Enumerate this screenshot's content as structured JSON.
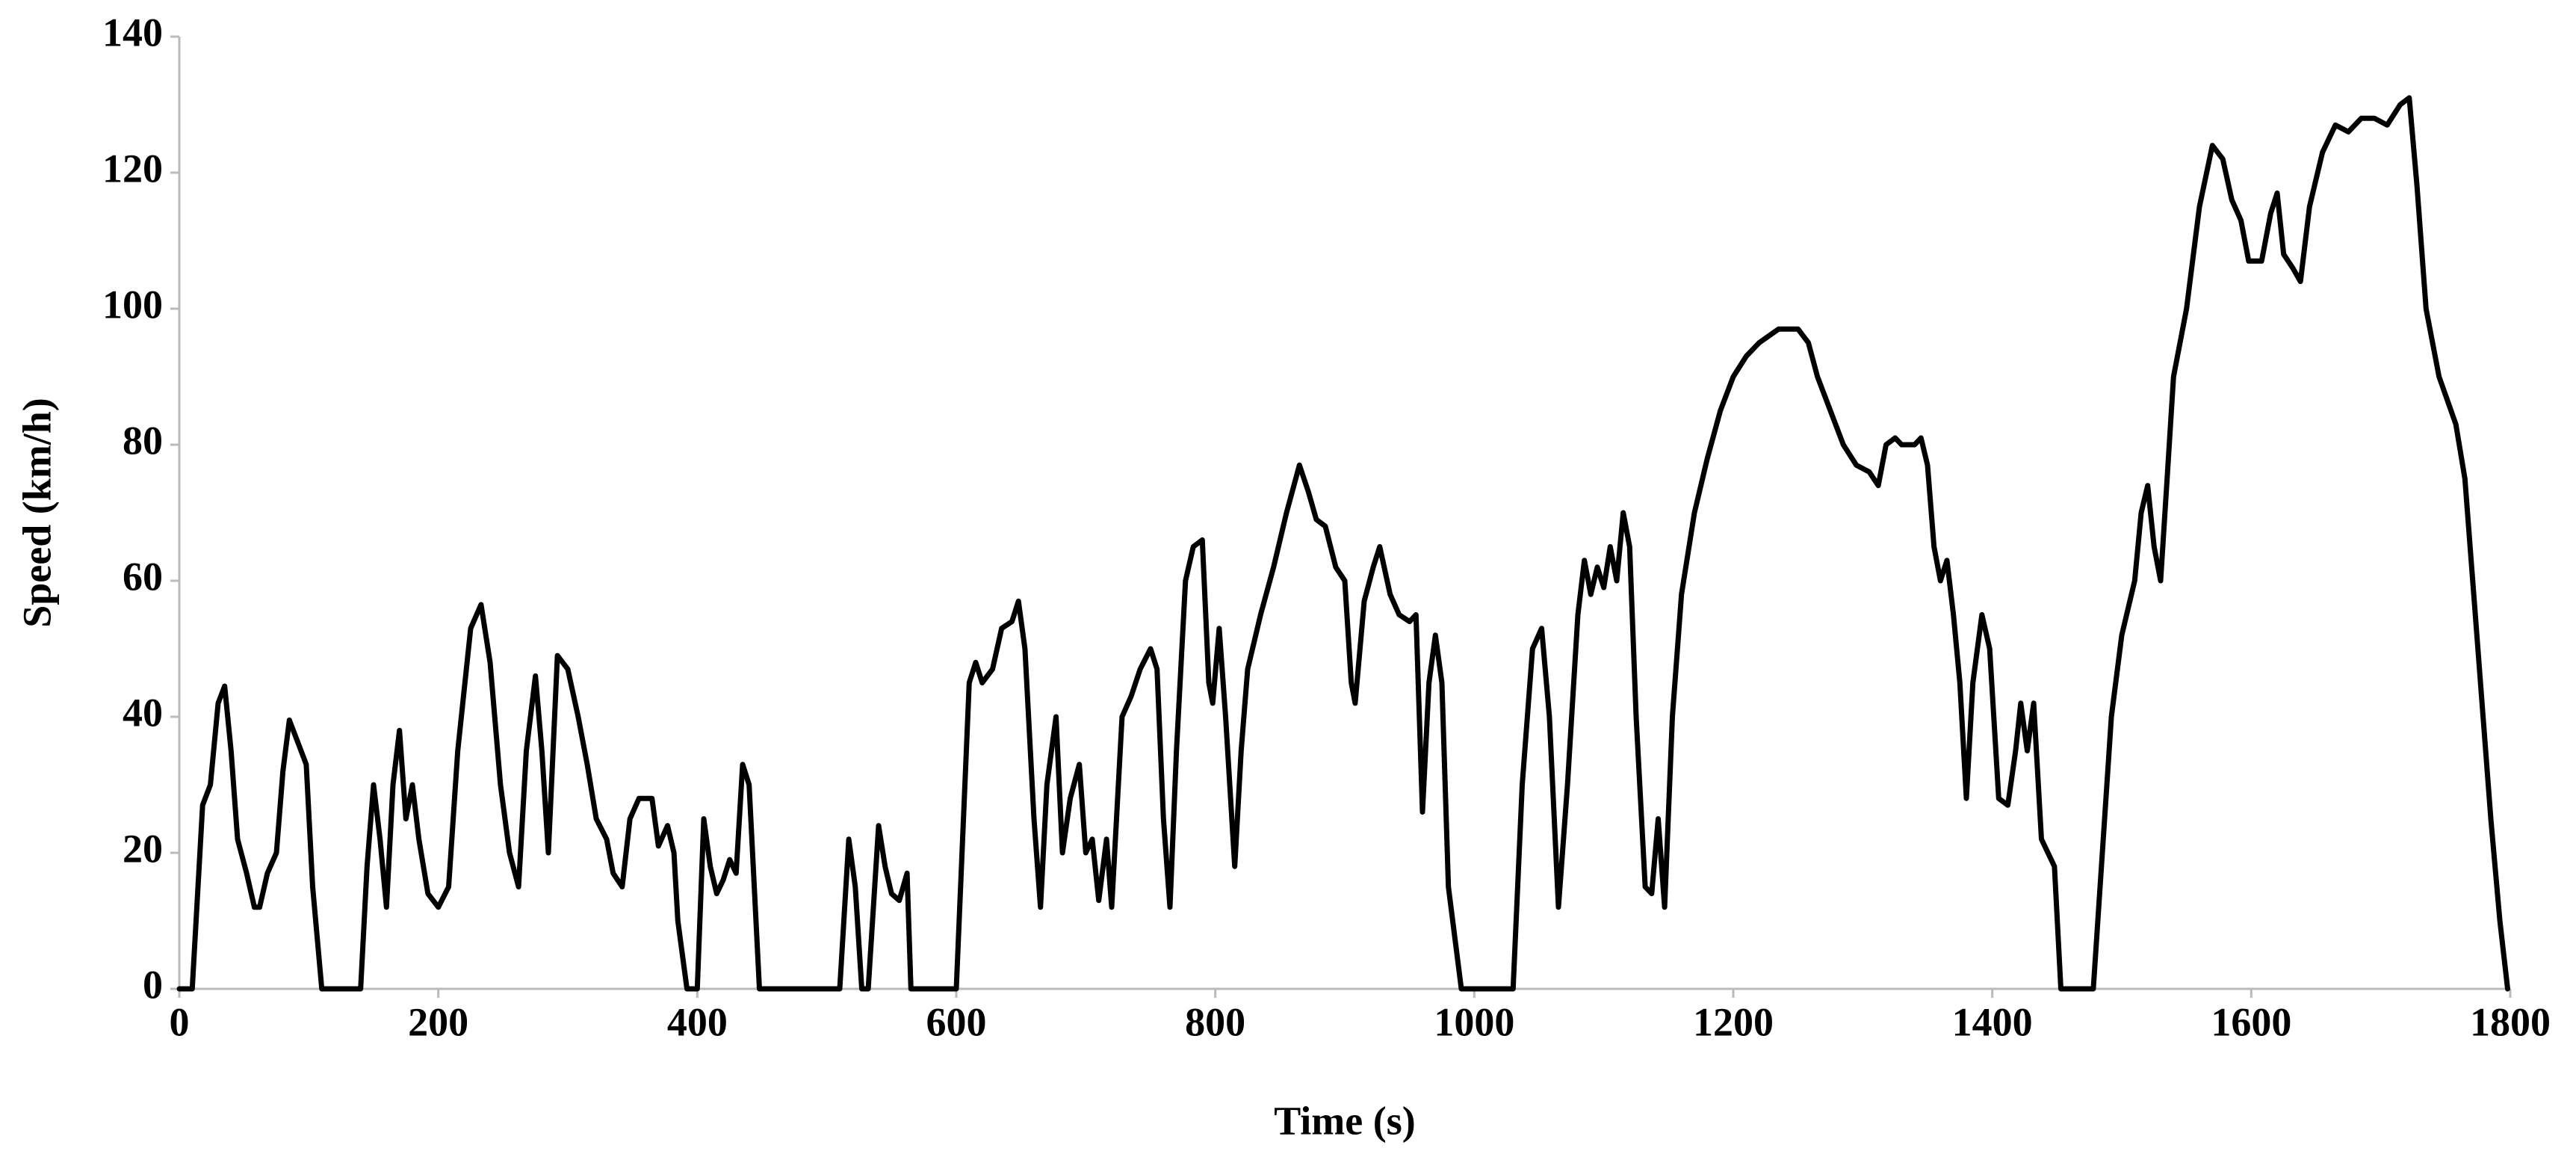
{
  "chart_data": {
    "type": "line",
    "xlabel": "Time (s)",
    "ylabel": "Speed (km/h)",
    "color": "#000000",
    "x": [
      0,
      10,
      18,
      24,
      30,
      35,
      40,
      45,
      52,
      58,
      62,
      68,
      75,
      80,
      85,
      92,
      98,
      103,
      110,
      140,
      145,
      150,
      155,
      160,
      165,
      170,
      175,
      180,
      185,
      192,
      200,
      208,
      215,
      225,
      233,
      240,
      248,
      255,
      262,
      268,
      275,
      280,
      285,
      292,
      300,
      308,
      315,
      322,
      330,
      335,
      342,
      348,
      355,
      365,
      370,
      377,
      382,
      385,
      392,
      400,
      405,
      410,
      415,
      420,
      425,
      430,
      435,
      440,
      448,
      510,
      517,
      522,
      527,
      532,
      540,
      545,
      550,
      556,
      562,
      565,
      600,
      610,
      615,
      620,
      628,
      635,
      643,
      648,
      653,
      660,
      665,
      670,
      677,
      682,
      688,
      695,
      700,
      705,
      710,
      716,
      720,
      728,
      735,
      742,
      750,
      755,
      760,
      765,
      770,
      777,
      783,
      790,
      795,
      798,
      803,
      808,
      815,
      820,
      825,
      835,
      845,
      855,
      865,
      872,
      878,
      885,
      893,
      900,
      905,
      908,
      915,
      922,
      927,
      935,
      942,
      950,
      955,
      960,
      965,
      970,
      975,
      980,
      990,
      1030,
      1037,
      1045,
      1052,
      1058,
      1065,
      1072,
      1080,
      1085,
      1090,
      1095,
      1100,
      1105,
      1110,
      1115,
      1120,
      1125,
      1132,
      1137,
      1142,
      1147,
      1153,
      1160,
      1170,
      1180,
      1190,
      1200,
      1210,
      1220,
      1235,
      1250,
      1258,
      1265,
      1275,
      1285,
      1295,
      1305,
      1312,
      1318,
      1325,
      1330,
      1340,
      1345,
      1350,
      1355,
      1360,
      1365,
      1370,
      1375,
      1380,
      1385,
      1392,
      1398,
      1405,
      1412,
      1418,
      1422,
      1427,
      1432,
      1438,
      1443,
      1448,
      1453,
      1478,
      1485,
      1492,
      1500,
      1510,
      1515,
      1520,
      1525,
      1530,
      1535,
      1540,
      1550,
      1560,
      1570,
      1578,
      1585,
      1592,
      1598,
      1608,
      1615,
      1620,
      1625,
      1632,
      1638,
      1645,
      1655,
      1665,
      1675,
      1685,
      1695,
      1705,
      1715,
      1722,
      1728,
      1735,
      1745,
      1758,
      1765,
      1775,
      1785,
      1792,
      1798
    ],
    "values": [
      0,
      0,
      27,
      30,
      42,
      44.5,
      35,
      22,
      17,
      12,
      12,
      17,
      20,
      32,
      39.5,
      36,
      33,
      15,
      0,
      0,
      18,
      30,
      22,
      12,
      30,
      38,
      25,
      30,
      22,
      14,
      12,
      15,
      35,
      53,
      56.5,
      48,
      30,
      20,
      15,
      35,
      46,
      35,
      20,
      49,
      47,
      40,
      33,
      25,
      22,
      17,
      15,
      25,
      28,
      28,
      21,
      24,
      20,
      10,
      0,
      0,
      25,
      18,
      14,
      16,
      19,
      17,
      33,
      30,
      0,
      0,
      22,
      15,
      0,
      0,
      24,
      18,
      14,
      13,
      17,
      0,
      0,
      45,
      48,
      45,
      47,
      53,
      54,
      57,
      50,
      25,
      12,
      30,
      40,
      20,
      28,
      33,
      20,
      22,
      13,
      22,
      12,
      40,
      43,
      47,
      50,
      47,
      25,
      12,
      35,
      60,
      65,
      66,
      45,
      42,
      53,
      40,
      18,
      35,
      47,
      55,
      62,
      70,
      77,
      73,
      69,
      68,
      62,
      60,
      45,
      42,
      57,
      62,
      65,
      58,
      55,
      54,
      55,
      26,
      45,
      52,
      45,
      15,
      0,
      0,
      30,
      50,
      53,
      40,
      12,
      30,
      55,
      63,
      58,
      62,
      59,
      65,
      60,
      70,
      65,
      40,
      15,
      14,
      25,
      12,
      40,
      58,
      70,
      78,
      85,
      90,
      93,
      95,
      97,
      97,
      95,
      90,
      85,
      80,
      77,
      76,
      74,
      80,
      81,
      80,
      80,
      81,
      77,
      65,
      60,
      63,
      55,
      45,
      28,
      45,
      55,
      50,
      28,
      27,
      35,
      42,
      35,
      42,
      22,
      20,
      18,
      0,
      0,
      20,
      40,
      52,
      60,
      70,
      74,
      65,
      60,
      75,
      90,
      100,
      115,
      124,
      122,
      116,
      113,
      107,
      107,
      114,
      117,
      108,
      106,
      104,
      115,
      123,
      127,
      126,
      128,
      128,
      127,
      130,
      131,
      118,
      100,
      90,
      83,
      75,
      50,
      25,
      10,
      0
    ],
    "xlim": [
      0,
      1800
    ],
    "xticks": [
      0,
      200,
      400,
      600,
      800,
      1000,
      1200,
      1400,
      1600,
      1800
    ],
    "ylim": [
      0,
      140
    ],
    "yticks": [
      0,
      20,
      40,
      60,
      80,
      100,
      120,
      140
    ]
  }
}
